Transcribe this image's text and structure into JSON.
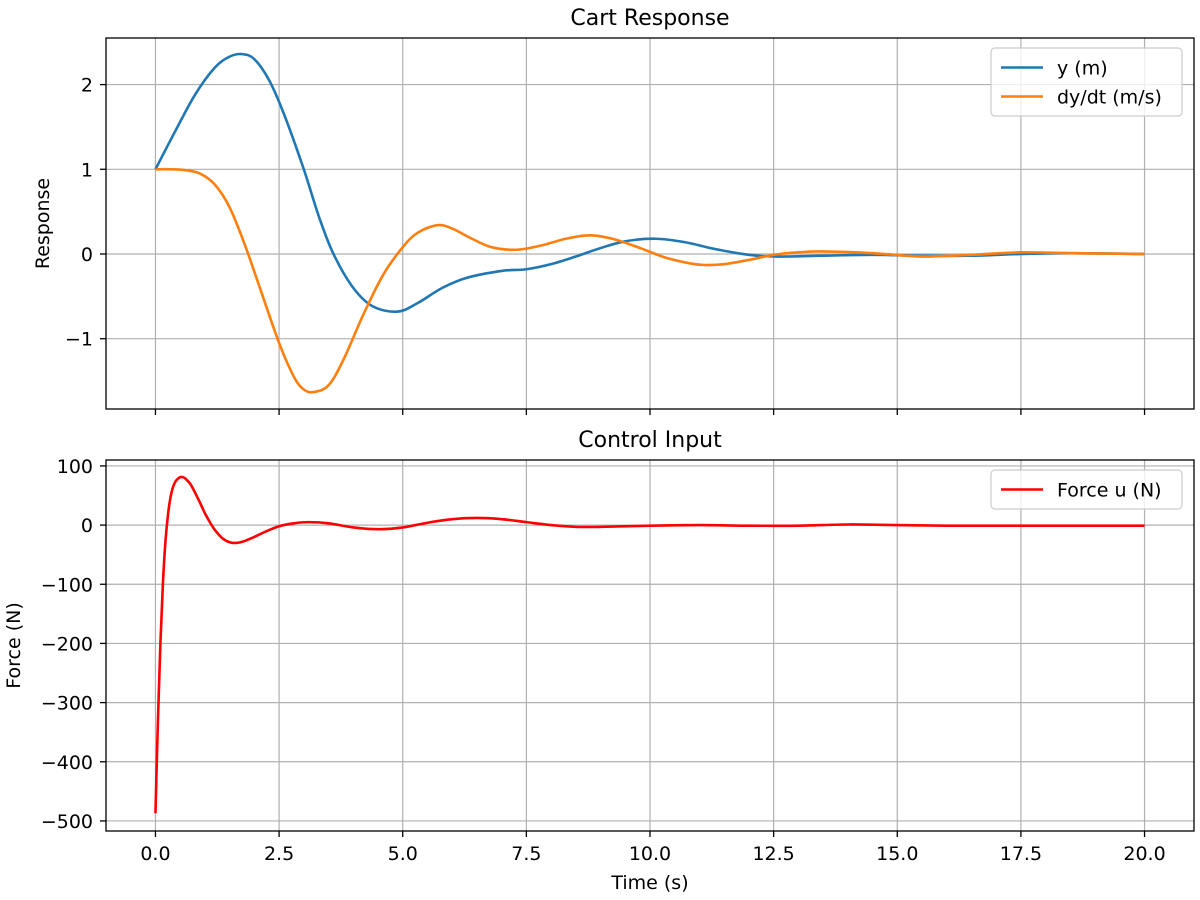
{
  "chart_data": [
    {
      "type": "line",
      "title": "Cart Response",
      "xlabel": "",
      "ylabel": "Response",
      "xlim": [
        -1,
        21
      ],
      "ylim": [
        -1.83,
        2.55
      ],
      "xticks": [
        0,
        2.5,
        5,
        7.5,
        10,
        12.5,
        15,
        17.5,
        20
      ],
      "xtick_labels": [],
      "yticks": [
        -1,
        0,
        1,
        2
      ],
      "ytick_labels": [
        "−1",
        "0",
        "1",
        "2"
      ],
      "grid": true,
      "legend_position": "top-right",
      "series": [
        {
          "name": "y (m)",
          "color": "#1f77b4",
          "x": [
            0,
            0.4,
            0.8,
            1.2,
            1.5,
            1.75,
            2.0,
            2.3,
            2.6,
            3.0,
            3.3,
            3.6,
            4.0,
            4.4,
            4.9,
            5.3,
            5.8,
            6.3,
            7.0,
            7.5,
            8.0,
            8.5,
            9.0,
            9.5,
            10.1,
            10.7,
            11.3,
            12.0,
            12.6,
            13.5,
            14.5,
            15.5,
            16.5,
            17.5,
            18.5,
            20.0
          ],
          "y": [
            1.0,
            1.45,
            1.88,
            2.2,
            2.33,
            2.36,
            2.3,
            2.05,
            1.65,
            1.0,
            0.45,
            0.0,
            -0.4,
            -0.62,
            -0.68,
            -0.58,
            -0.4,
            -0.28,
            -0.2,
            -0.18,
            -0.12,
            -0.03,
            0.07,
            0.15,
            0.18,
            0.14,
            0.06,
            -0.01,
            -0.03,
            -0.02,
            -0.01,
            -0.02,
            -0.02,
            0.0,
            0.01,
            0.0
          ]
        },
        {
          "name": "dy/dt (m/s)",
          "color": "#ff7f0e",
          "x": [
            0,
            0.3,
            0.6,
            0.9,
            1.2,
            1.5,
            1.8,
            2.1,
            2.5,
            2.8,
            3.0,
            3.2,
            3.5,
            3.8,
            4.2,
            4.6,
            5.0,
            5.3,
            5.7,
            6.0,
            6.4,
            6.8,
            7.3,
            7.8,
            8.3,
            8.8,
            9.3,
            9.8,
            10.3,
            10.8,
            11.1,
            11.5,
            12.0,
            12.5,
            13.0,
            13.5,
            14.5,
            15.5,
            16.5,
            17.5,
            18.5,
            20.0
          ],
          "y": [
            1.0,
            1.0,
            0.99,
            0.95,
            0.82,
            0.55,
            0.12,
            -0.38,
            -1.05,
            -1.45,
            -1.6,
            -1.63,
            -1.55,
            -1.25,
            -0.72,
            -0.25,
            0.08,
            0.25,
            0.34,
            0.3,
            0.18,
            0.08,
            0.05,
            0.1,
            0.18,
            0.22,
            0.17,
            0.07,
            -0.04,
            -0.11,
            -0.13,
            -0.12,
            -0.07,
            -0.01,
            0.02,
            0.03,
            0.01,
            -0.03,
            -0.01,
            0.02,
            0.01,
            0.0
          ]
        }
      ]
    },
    {
      "type": "line",
      "title": "Control Input",
      "xlabel": "Time (s)",
      "ylabel": "Force (N)",
      "xlim": [
        -1,
        21
      ],
      "ylim": [
        -517,
        110
      ],
      "xticks": [
        0,
        2.5,
        5,
        7.5,
        10,
        12.5,
        15,
        17.5,
        20
      ],
      "xtick_labels": [
        "0.0",
        "2.5",
        "5.0",
        "7.5",
        "10.0",
        "12.5",
        "15.0",
        "17.5",
        "20.0"
      ],
      "yticks": [
        -500,
        -400,
        -300,
        -200,
        -100,
        0,
        100
      ],
      "ytick_labels": [
        "−500",
        "−400",
        "−300",
        "−200",
        "−100",
        "0",
        "100"
      ],
      "grid": true,
      "legend_position": "top-right",
      "series": [
        {
          "name": "Force u (N)",
          "color": "#ff0000",
          "x": [
            0,
            0.05,
            0.1,
            0.15,
            0.2,
            0.25,
            0.3,
            0.35,
            0.4,
            0.45,
            0.5,
            0.55,
            0.6,
            0.7,
            0.8,
            0.9,
            1.0,
            1.1,
            1.2,
            1.35,
            1.5,
            1.65,
            1.8,
            2.0,
            2.2,
            2.5,
            2.8,
            3.1,
            3.5,
            4.0,
            4.5,
            5.0,
            5.5,
            6.0,
            6.5,
            7.0,
            7.5,
            8.0,
            8.5,
            9.0,
            10.0,
            11.0,
            12.0,
            13.0,
            14.0,
            15.0,
            16.0,
            17.0,
            18.0,
            19.0,
            20.0
          ],
          "y": [
            -487,
            -330,
            -200,
            -100,
            -30,
            15,
            45,
            63,
            73,
            78,
            81,
            81,
            79,
            70,
            55,
            38,
            20,
            5,
            -8,
            -22,
            -29,
            -30,
            -27,
            -20,
            -12,
            -2,
            3,
            5,
            3,
            -4,
            -7,
            -4,
            4,
            10,
            12,
            10,
            5,
            0,
            -3,
            -3,
            -1,
            0,
            -1,
            -1,
            1,
            0,
            -1,
            -1,
            -1,
            -1,
            -1
          ]
        }
      ]
    }
  ]
}
